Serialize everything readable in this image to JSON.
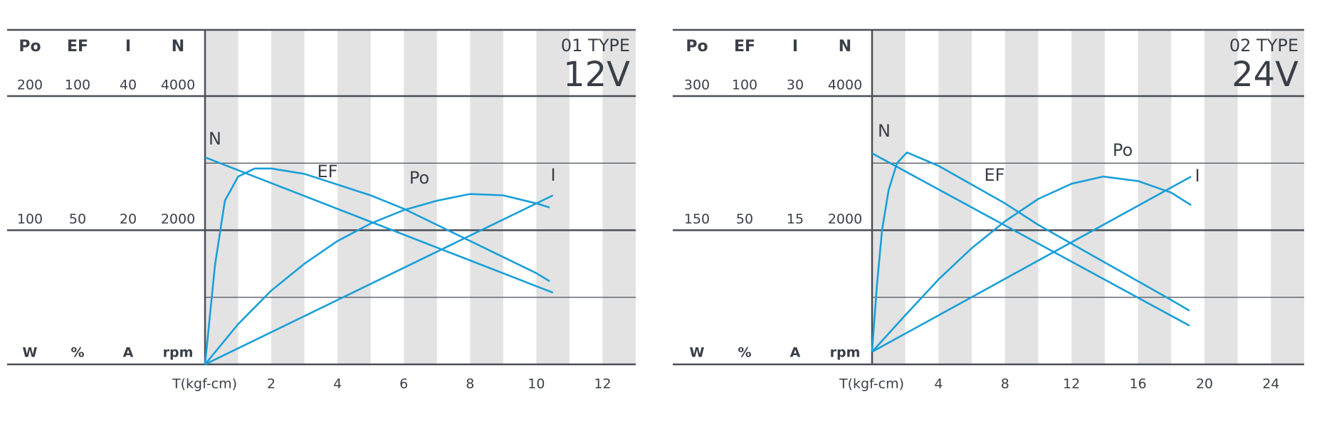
{
  "chart_data": [
    {
      "type": "line",
      "title": "01 TYPE",
      "voltage": "12V",
      "x_label": "T(kgf-cm)",
      "xlim": [
        0,
        13
      ],
      "xticks": [
        2,
        4,
        6,
        8,
        10,
        12
      ],
      "axes": [
        {
          "name": "Po",
          "unit": "W",
          "ylim": [
            0,
            200
          ],
          "yticks": [
            100,
            200
          ]
        },
        {
          "name": "EF",
          "unit": "%",
          "ylim": [
            0,
            100
          ],
          "yticks": [
            50,
            100
          ]
        },
        {
          "name": "I",
          "unit": "A",
          "ylim": [
            0,
            40
          ],
          "yticks": [
            20,
            40
          ]
        },
        {
          "name": "N",
          "unit": "rpm",
          "ylim": [
            0,
            4000
          ],
          "yticks": [
            2000,
            4000
          ]
        }
      ],
      "series": [
        {
          "name": "Po",
          "color": "#1a9fd9",
          "x": [
            0,
            1,
            2,
            3,
            4,
            5,
            6,
            7,
            8,
            9,
            10,
            10.4
          ],
          "values": [
            0,
            30,
            55,
            75,
            92,
            105,
            115,
            122,
            127,
            126,
            120,
            117
          ]
        },
        {
          "name": "EF",
          "color": "#1a9fd9",
          "x": [
            0,
            0.3,
            0.6,
            1,
            1.5,
            2,
            3,
            4,
            5,
            6,
            7,
            8,
            9,
            10,
            10.4
          ],
          "values": [
            0,
            37,
            61,
            70,
            73,
            73,
            71,
            67,
            63,
            58,
            52,
            46,
            40,
            34,
            31
          ]
        },
        {
          "name": "I",
          "color": "#1a9fd9",
          "x": [
            0,
            10.5
          ],
          "values": [
            0,
            25.2
          ]
        },
        {
          "name": "N",
          "color": "#1a9fd9",
          "x": [
            0,
            10.5
          ],
          "values": [
            3087,
            1069
          ]
        }
      ]
    },
    {
      "type": "line",
      "title": "02 TYPE",
      "voltage": "24V",
      "x_label": "T(kgf-cm)",
      "xlim": [
        0,
        26
      ],
      "xticks": [
        4,
        8,
        12,
        16,
        20,
        24
      ],
      "axes": [
        {
          "name": "Po",
          "unit": "W",
          "ylim": [
            0,
            300
          ],
          "yticks": [
            150,
            300
          ]
        },
        {
          "name": "EF",
          "unit": "%",
          "ylim": [
            0,
            100
          ],
          "yticks": [
            50,
            100
          ]
        },
        {
          "name": "I",
          "unit": "A",
          "ylim": [
            0,
            30
          ],
          "yticks": [
            15,
            30
          ]
        },
        {
          "name": "N",
          "unit": "rpm",
          "ylim": [
            0,
            4000
          ],
          "yticks": [
            2000,
            4000
          ]
        }
      ],
      "series": [
        {
          "name": "Po",
          "color": "#1a9fd9",
          "x": [
            0,
            2,
            4,
            6,
            8,
            10,
            12,
            13.9,
            16,
            18,
            19.2
          ],
          "values": [
            14,
            55,
            95,
            130,
            160,
            185,
            202,
            210,
            205,
            192,
            178
          ]
        },
        {
          "name": "EF",
          "color": "#1a9fd9",
          "x": [
            0,
            0.3,
            0.6,
            1,
            1.5,
            2.1,
            4,
            6,
            8,
            10,
            12,
            14,
            16,
            18,
            19.1
          ],
          "values": [
            5,
            30,
            50,
            65,
            75,
            79,
            74,
            67,
            60,
            52,
            45,
            38,
            31,
            24,
            20
          ]
        },
        {
          "name": "I",
          "color": "#1a9fd9",
          "x": [
            0,
            19.2
          ],
          "values": [
            1.4,
            21
          ]
        },
        {
          "name": "N",
          "color": "#1a9fd9",
          "x": [
            0,
            19.1
          ],
          "values": [
            3147,
            577
          ]
        }
      ]
    }
  ]
}
